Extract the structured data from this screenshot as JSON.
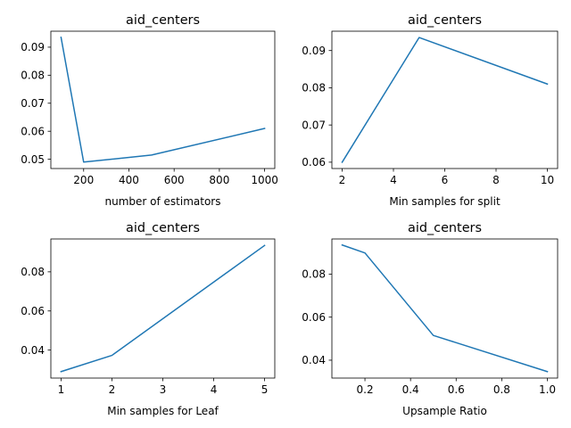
{
  "colors": {
    "series": "#1f77b4"
  },
  "chart_data": [
    {
      "type": "line",
      "title": "aid_centers",
      "xlabel": "number of estimators",
      "ylabel": "",
      "grid": false,
      "xlim": [
        55,
        1045
      ],
      "ylim": [
        0.0467,
        0.0957
      ],
      "x": [
        100,
        200,
        500,
        1000
      ],
      "series": [
        {
          "values": [
            0.0935,
            0.049,
            0.0515,
            0.061
          ]
        }
      ],
      "xticks": [
        200,
        400,
        600,
        800,
        1000
      ],
      "xtick_labels": [
        "200",
        "400",
        "600",
        "800",
        "1000"
      ],
      "yticks": [
        0.05,
        0.06,
        0.07,
        0.08,
        0.09
      ],
      "ytick_labels": [
        "0.05",
        "0.06",
        "0.07",
        "0.08",
        "0.09"
      ]
    },
    {
      "type": "line",
      "title": "aid_centers",
      "xlabel": "Min samples for split",
      "ylabel": "",
      "grid": false,
      "xlim": [
        1.6,
        10.4
      ],
      "ylim": [
        0.0583,
        0.0952
      ],
      "x": [
        2,
        5,
        10
      ],
      "series": [
        {
          "values": [
            0.06,
            0.0935,
            0.081
          ]
        }
      ],
      "xticks": [
        2,
        4,
        6,
        8,
        10
      ],
      "xtick_labels": [
        "2",
        "4",
        "6",
        "8",
        "10"
      ],
      "yticks": [
        0.06,
        0.07,
        0.08,
        0.09
      ],
      "ytick_labels": [
        "0.06",
        "0.07",
        "0.08",
        "0.09"
      ]
    },
    {
      "type": "line",
      "title": "aid_centers",
      "xlabel": "Min samples for Leaf",
      "ylabel": "",
      "grid": false,
      "xlim": [
        0.8,
        5.2
      ],
      "ylim": [
        0.0257,
        0.0968
      ],
      "x": [
        1,
        2,
        5
      ],
      "series": [
        {
          "values": [
            0.029,
            0.0373,
            0.0935
          ]
        }
      ],
      "xticks": [
        1,
        2,
        3,
        4,
        5
      ],
      "xtick_labels": [
        "1",
        "2",
        "3",
        "4",
        "5"
      ],
      "yticks": [
        0.04,
        0.06,
        0.08
      ],
      "ytick_labels": [
        "0.04",
        "0.06",
        "0.08"
      ]
    },
    {
      "type": "line",
      "title": "aid_centers",
      "xlabel": "Upsample Ratio",
      "ylabel": "",
      "grid": false,
      "xlim": [
        0.055,
        1.045
      ],
      "ylim": [
        0.0317,
        0.0963
      ],
      "x": [
        0.1,
        0.2,
        0.5,
        1.0
      ],
      "series": [
        {
          "values": [
            0.0935,
            0.0898,
            0.0515,
            0.0347
          ]
        }
      ],
      "xticks": [
        0.2,
        0.4,
        0.6,
        0.8,
        1.0
      ],
      "xtick_labels": [
        "0.2",
        "0.4",
        "0.6",
        "0.8",
        "1.0"
      ],
      "yticks": [
        0.04,
        0.06,
        0.08
      ],
      "ytick_labels": [
        "0.04",
        "0.06",
        "0.08"
      ]
    }
  ]
}
